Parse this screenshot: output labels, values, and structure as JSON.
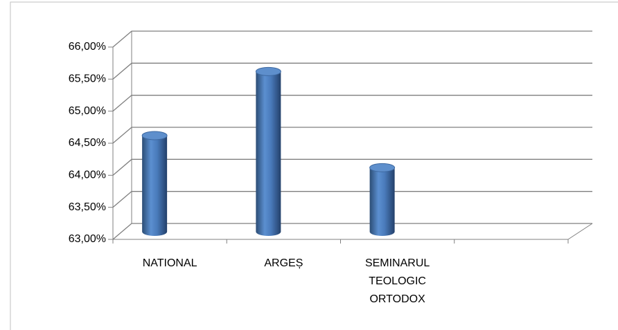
{
  "chart_data": {
    "type": "bar",
    "style": "3d-cylinder",
    "categories": [
      "NATIONAL",
      "ARGEȘ",
      "SEMINARUL TEOLOGIC ORTODOX",
      null
    ],
    "values": [
      64.5,
      65.5,
      64,
      null
    ],
    "color": "#4f81bd",
    "ylim": [
      63,
      66
    ],
    "yticks": [
      {
        "value": 63,
        "label": "63,00%"
      },
      {
        "value": 63.5,
        "label": "63,50%"
      },
      {
        "value": 64,
        "label": "64,00%"
      },
      {
        "value": 64.5,
        "label": "64,50%"
      },
      {
        "value": 65,
        "label": "65,00%"
      },
      {
        "value": 65.5,
        "label": "65,50%"
      },
      {
        "value": 66,
        "label": "66,00%"
      }
    ],
    "grid": true
  }
}
